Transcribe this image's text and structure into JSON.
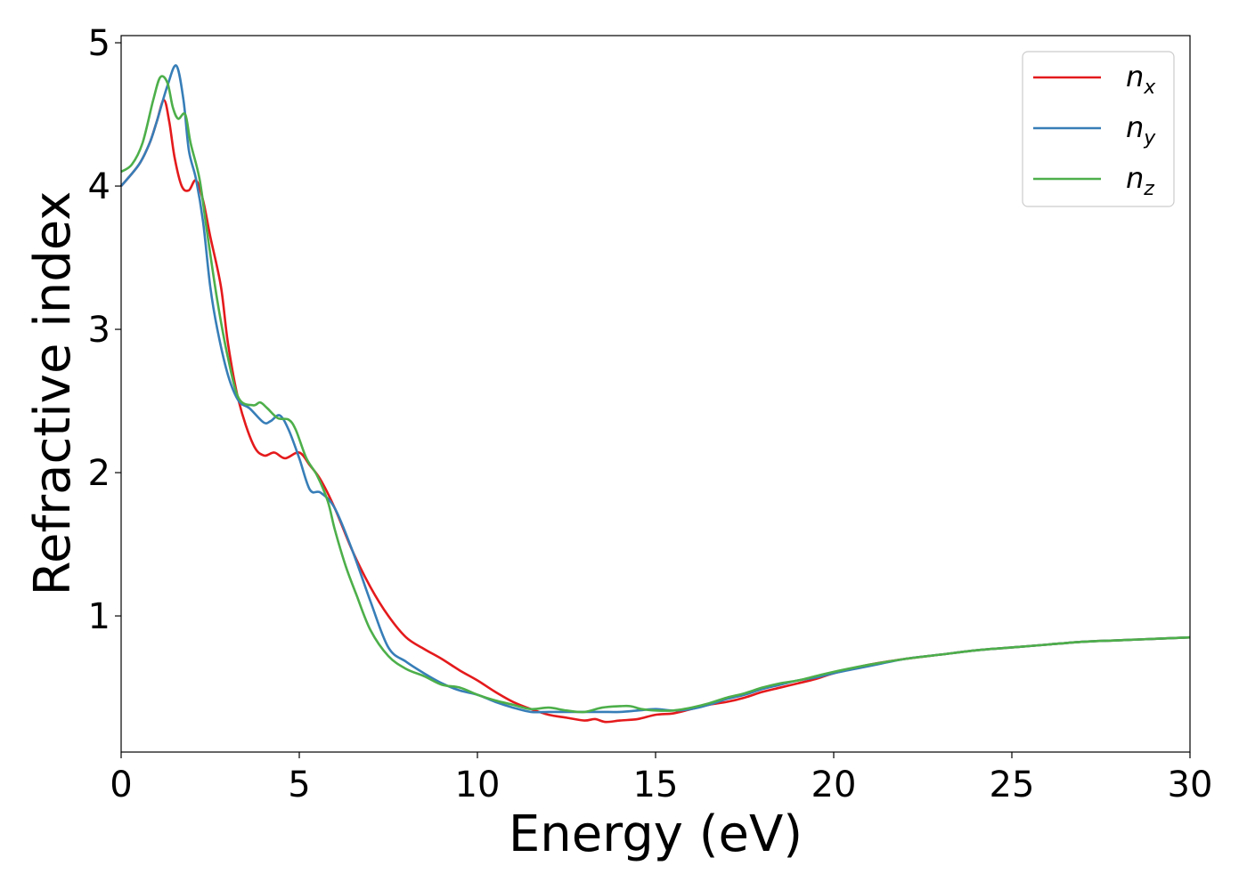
{
  "chart_data": {
    "type": "line",
    "xlabel": "Energy (eV)",
    "ylabel": "Refractive index",
    "xlim": [
      0,
      30
    ],
    "ylim": [
      0.05,
      5.05
    ],
    "xticks": [
      "0",
      "5",
      "10",
      "15",
      "20",
      "25",
      "30"
    ],
    "yticks": [
      "1",
      "2",
      "3",
      "4",
      "5"
    ],
    "grid": false,
    "legend_position": "top-right",
    "series": [
      {
        "name": "n_x",
        "legend_base": "n",
        "legend_sub": "x",
        "color": "#e41a1c",
        "x": [
          0,
          0.5,
          0.8,
          1.0,
          1.2,
          1.35,
          1.5,
          1.7,
          1.9,
          2.1,
          2.3,
          2.5,
          2.8,
          3.0,
          3.3,
          3.7,
          4.0,
          4.3,
          4.6,
          5.0,
          5.3,
          5.6,
          6.0,
          6.5,
          7.0,
          7.5,
          8.0,
          8.5,
          9.0,
          9.5,
          10.0,
          10.5,
          11.0,
          11.5,
          12.0,
          12.5,
          13.0,
          13.3,
          13.6,
          14.0,
          14.5,
          15.0,
          15.5,
          16.0,
          16.5,
          17.0,
          17.5,
          18.0,
          18.5,
          19.0,
          19.5,
          20.0,
          21.0,
          22.0,
          23.0,
          24.0,
          25.0,
          26.0,
          27.0,
          28.0,
          29.0,
          30.0
        ],
        "y": [
          4.0,
          4.15,
          4.3,
          4.45,
          4.6,
          4.45,
          4.2,
          4.0,
          3.97,
          4.04,
          3.9,
          3.65,
          3.3,
          2.9,
          2.5,
          2.2,
          2.12,
          2.14,
          2.1,
          2.14,
          2.05,
          1.95,
          1.75,
          1.45,
          1.2,
          1.0,
          0.85,
          0.77,
          0.7,
          0.62,
          0.55,
          0.47,
          0.4,
          0.35,
          0.31,
          0.29,
          0.27,
          0.28,
          0.26,
          0.27,
          0.28,
          0.31,
          0.32,
          0.35,
          0.38,
          0.4,
          0.43,
          0.47,
          0.5,
          0.53,
          0.56,
          0.6,
          0.66,
          0.7,
          0.73,
          0.76,
          0.78,
          0.8,
          0.82,
          0.83,
          0.84,
          0.85
        ]
      },
      {
        "name": "n_y",
        "legend_base": "n",
        "legend_sub": "y",
        "color": "#377eb8",
        "x": [
          0,
          0.5,
          0.8,
          1.0,
          1.3,
          1.55,
          1.75,
          1.9,
          2.1,
          2.3,
          2.5,
          2.7,
          3.0,
          3.3,
          3.6,
          4.0,
          4.2,
          4.45,
          4.7,
          5.0,
          5.3,
          5.6,
          6.0,
          6.5,
          7.0,
          7.5,
          8.0,
          8.5,
          9.0,
          9.5,
          10.0,
          10.5,
          11.0,
          11.5,
          12.0,
          12.5,
          13.0,
          13.5,
          14.0,
          14.5,
          15.0,
          15.5,
          16.0,
          16.5,
          17.0,
          17.5,
          18.0,
          18.5,
          19.0,
          19.5,
          20.0,
          21.0,
          22.0,
          23.0,
          24.0,
          25.0,
          26.0,
          27.0,
          28.0,
          29.0,
          30.0
        ],
        "y": [
          4.0,
          4.15,
          4.3,
          4.45,
          4.7,
          4.84,
          4.6,
          4.25,
          4.05,
          3.75,
          3.3,
          3.0,
          2.68,
          2.5,
          2.45,
          2.35,
          2.36,
          2.4,
          2.3,
          2.1,
          1.88,
          1.86,
          1.75,
          1.45,
          1.1,
          0.78,
          0.68,
          0.6,
          0.53,
          0.48,
          0.45,
          0.4,
          0.36,
          0.33,
          0.33,
          0.33,
          0.33,
          0.33,
          0.33,
          0.34,
          0.35,
          0.34,
          0.35,
          0.38,
          0.42,
          0.45,
          0.49,
          0.52,
          0.55,
          0.57,
          0.6,
          0.65,
          0.7,
          0.73,
          0.76,
          0.78,
          0.8,
          0.82,
          0.83,
          0.84,
          0.85
        ]
      },
      {
        "name": "n_z",
        "legend_base": "n",
        "legend_sub": "z",
        "color": "#4daf4a",
        "x": [
          0,
          0.3,
          0.6,
          0.9,
          1.1,
          1.3,
          1.45,
          1.6,
          1.8,
          1.95,
          2.2,
          2.4,
          2.7,
          3.0,
          3.3,
          3.7,
          3.9,
          4.1,
          4.4,
          4.7,
          4.9,
          5.2,
          5.5,
          5.8,
          6.0,
          6.3,
          6.6,
          7.0,
          7.5,
          8.0,
          8.5,
          9.0,
          9.5,
          10.0,
          10.5,
          11.0,
          11.5,
          12.0,
          12.5,
          13.0,
          13.5,
          14.0,
          14.3,
          14.6,
          15.0,
          15.5,
          16.0,
          16.5,
          17.0,
          17.5,
          18.0,
          18.5,
          19.0,
          19.5,
          20.0,
          21.0,
          22.0,
          23.0,
          24.0,
          25.0,
          26.0,
          27.0,
          28.0,
          29.0,
          30.0
        ],
        "y": [
          4.1,
          4.15,
          4.3,
          4.6,
          4.76,
          4.72,
          4.55,
          4.47,
          4.5,
          4.3,
          4.05,
          3.7,
          3.2,
          2.8,
          2.52,
          2.47,
          2.49,
          2.45,
          2.38,
          2.37,
          2.3,
          2.1,
          1.98,
          1.8,
          1.6,
          1.35,
          1.15,
          0.9,
          0.72,
          0.63,
          0.58,
          0.52,
          0.5,
          0.45,
          0.41,
          0.38,
          0.35,
          0.36,
          0.34,
          0.33,
          0.36,
          0.37,
          0.37,
          0.35,
          0.34,
          0.34,
          0.36,
          0.39,
          0.43,
          0.46,
          0.5,
          0.53,
          0.55,
          0.58,
          0.61,
          0.66,
          0.7,
          0.73,
          0.76,
          0.78,
          0.8,
          0.82,
          0.83,
          0.84,
          0.85
        ]
      }
    ]
  }
}
